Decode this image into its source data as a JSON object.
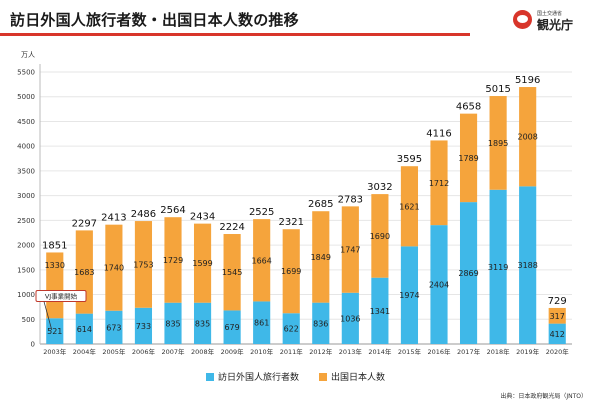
{
  "header": {
    "title": "訪日外国人旅行者数・出国日本人数の推移",
    "logo_small": "国土交通省",
    "logo_main": "観光庁",
    "source": "出典：日本政府観光局（JNTO）"
  },
  "colors": {
    "inbound": "#3fb8e8",
    "outbound": "#f5a43c",
    "accent": "#d8352a"
  },
  "chart_data": {
    "type": "bar",
    "stacked": true,
    "categories": [
      "2003年",
      "2004年",
      "2005年",
      "2006年",
      "2007年",
      "2008年",
      "2009年",
      "2010年",
      "2011年",
      "2012年",
      "2013年",
      "2014年",
      "2015年",
      "2016年",
      "2017年",
      "2018年",
      "2019年",
      "2020年"
    ],
    "series": [
      {
        "name": "訪日外国人旅行者数",
        "values": [
          521,
          614,
          673,
          733,
          835,
          835,
          679,
          861,
          622,
          836,
          1036,
          1341,
          1974,
          2404,
          2869,
          3119,
          3188,
          412
        ]
      },
      {
        "name": "出国日本人数",
        "values": [
          1330,
          1683,
          1740,
          1753,
          1729,
          1599,
          1545,
          1664,
          1699,
          1849,
          1747,
          1690,
          1621,
          1712,
          1789,
          1895,
          2008,
          317
        ]
      }
    ],
    "totals": [
      1851,
      2297,
      2413,
      2486,
      2564,
      2434,
      2224,
      2525,
      2321,
      2685,
      2783,
      3032,
      3595,
      4116,
      4658,
      5015,
      5196,
      729
    ],
    "ylabel": "万人",
    "ylim": [
      0,
      5500
    ],
    "yticks": [
      0,
      500,
      1000,
      1500,
      2000,
      2500,
      3000,
      3500,
      4000,
      4500,
      5000,
      5500
    ],
    "grid": true,
    "legend_position": "bottom-center",
    "annotations": [
      {
        "text": "VJ事業開始",
        "category": "2003年"
      }
    ]
  }
}
